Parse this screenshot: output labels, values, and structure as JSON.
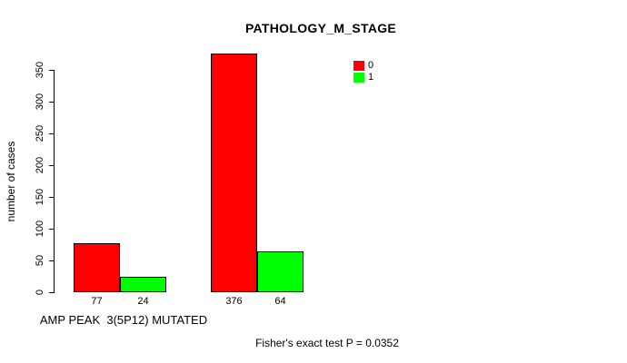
{
  "chart_data": {
    "type": "bar",
    "title": "PATHOLOGY_M_STAGE",
    "ylabel": "number of cases",
    "xlabel": "AMP PEAK  3(5P12) MUTATED",
    "categories": [
      "AMP PEAK  3(5P12) MUTATED",
      ""
    ],
    "series": [
      {
        "name": "0",
        "color": "#FF0000",
        "values": [
          77,
          376
        ]
      },
      {
        "name": "1",
        "color": "#00FF00",
        "values": [
          24,
          64
        ]
      }
    ],
    "value_labels": [
      [
        "77",
        "376"
      ],
      [
        "24",
        "64"
      ]
    ],
    "yticks": [
      "0",
      "50",
      "100",
      "150",
      "200",
      "250",
      "300",
      "350"
    ],
    "ylim": [
      0,
      380
    ],
    "grid": false,
    "legend": {
      "position": "top-right",
      "entries": [
        {
          "label": "0",
          "color": "#FF0000"
        },
        {
          "label": "1",
          "color": "#00FF00"
        }
      ]
    },
    "annotation": "Fisher's exact test P = 0.0352"
  },
  "colors": {
    "background": "#FFFFFF",
    "axis": "#000000",
    "text": "#000000",
    "series0": "#FF0000",
    "series1": "#00FF00"
  }
}
